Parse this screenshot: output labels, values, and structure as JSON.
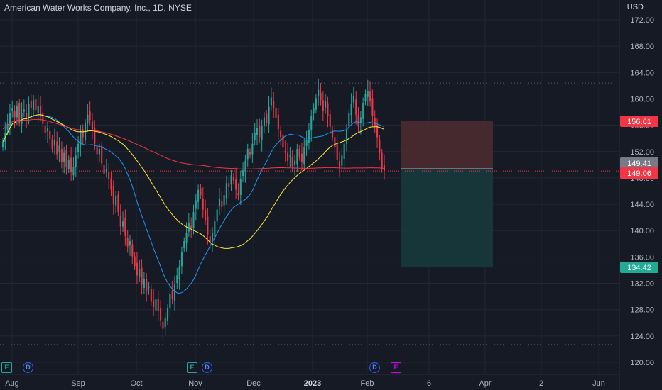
{
  "header": {
    "title": "American Water Works Company, Inc., 1D, NYSE",
    "currency": "USD"
  },
  "price_tags": {
    "stop_loss": "156.61",
    "previous_close": "149.41",
    "last_price": "149.06",
    "take_profit": "134.42"
  },
  "events": {
    "earnings_label": "E",
    "dividend_label": "D"
  },
  "colors": {
    "background": "#161a25",
    "up": "#26a69a",
    "down": "#f23645",
    "ma_fast": "#2196f3",
    "ma_mid": "#ffeb3b",
    "ma_slow": "#f23645",
    "stop_zone": "#4a2b31",
    "profit_zone": "#163a3d"
  },
  "chart_data": {
    "type": "candlestick",
    "title": "American Water Works Company, Inc., 1D, NYSE",
    "ylim": [
      118,
      174
    ],
    "y_ticks": [
      "120.00",
      "124.00",
      "128.00",
      "132.00",
      "136.00",
      "140.00",
      "144.00",
      "148.00",
      "152.00",
      "156.00",
      "160.00",
      "164.00",
      "168.00",
      "172.00"
    ],
    "x_ticks": [
      "Aug",
      "Sep",
      "Oct",
      "Nov",
      "Dec",
      "2023",
      "Feb",
      "6",
      "Apr",
      "2",
      "Jun"
    ],
    "grid": true,
    "closes": [
      153.5,
      154.8,
      156.2,
      157.9,
      158.6,
      157.2,
      158.9,
      156.4,
      157.8,
      158.4,
      157.1,
      159.2,
      158.6,
      159.8,
      158.3,
      158.9,
      157.4,
      156.2,
      154.8,
      155.6,
      153.9,
      152.4,
      153.8,
      151.6,
      152.9,
      150.4,
      151.8,
      149.6,
      150.8,
      148.9,
      149.6,
      151.4,
      153.2,
      155.1,
      154.2,
      156.3,
      157.6,
      156.8,
      155.4,
      153.2,
      151.6,
      152.4,
      150.2,
      148.6,
      149.4,
      147.8,
      146.2,
      144.1,
      145.2,
      142.8,
      140.6,
      141.4,
      139.2,
      137.6,
      138.4,
      136.1,
      134.6,
      133.2,
      134.1,
      131.8,
      132.6,
      130.9,
      131.4,
      129.2,
      128.4,
      129.6,
      127.8,
      126.4,
      125.1,
      126.8,
      128.2,
      130.4,
      129.6,
      131.8,
      133.2,
      134.6,
      136.8,
      138.4,
      139.6,
      141.2,
      140.4,
      142.8,
      144.6,
      146.2,
      145.4,
      143.2,
      141.6,
      139.4,
      138.2,
      139.6,
      141.4,
      143.2,
      144.8,
      143.6,
      145.4,
      147.2,
      146.6,
      148.4,
      147.6,
      146.2,
      145.4,
      147.8,
      149.2,
      150.6,
      152.4,
      151.6,
      153.2,
      154.8,
      155.6,
      154.2,
      155.9,
      157.2,
      156.4,
      158.8,
      160.2,
      158.6,
      157.1,
      155.4,
      154.2,
      152.6,
      151.8,
      150.6,
      151.4,
      149.8,
      150.6,
      152.4,
      151.2,
      150.4,
      152.6,
      153.8,
      155.2,
      157.4,
      158.6,
      160.1,
      161.4,
      159.8,
      158.2,
      159.6,
      157.4,
      155.8,
      154.2,
      152.6,
      150.8,
      149.6,
      151.4,
      153.2,
      155.4,
      157.8,
      159.2,
      160.4,
      157.6,
      155.8,
      157.2,
      159.4,
      160.8,
      161.2,
      159.6,
      157.4,
      155.8,
      154.2,
      151.8,
      149.4,
      149.06
    ],
    "moving_averages": [
      {
        "color": "#2196f3",
        "period": 20
      },
      {
        "color": "#ffeb3b",
        "period": 50
      },
      {
        "color": "#f23645",
        "period": 200
      }
    ],
    "price_lines": {
      "stop_loss": 156.61,
      "previous_close": 149.41,
      "last_price": 149.06,
      "take_profit": 134.42,
      "high_marker": 162.4,
      "low_marker": 122.7
    }
  }
}
